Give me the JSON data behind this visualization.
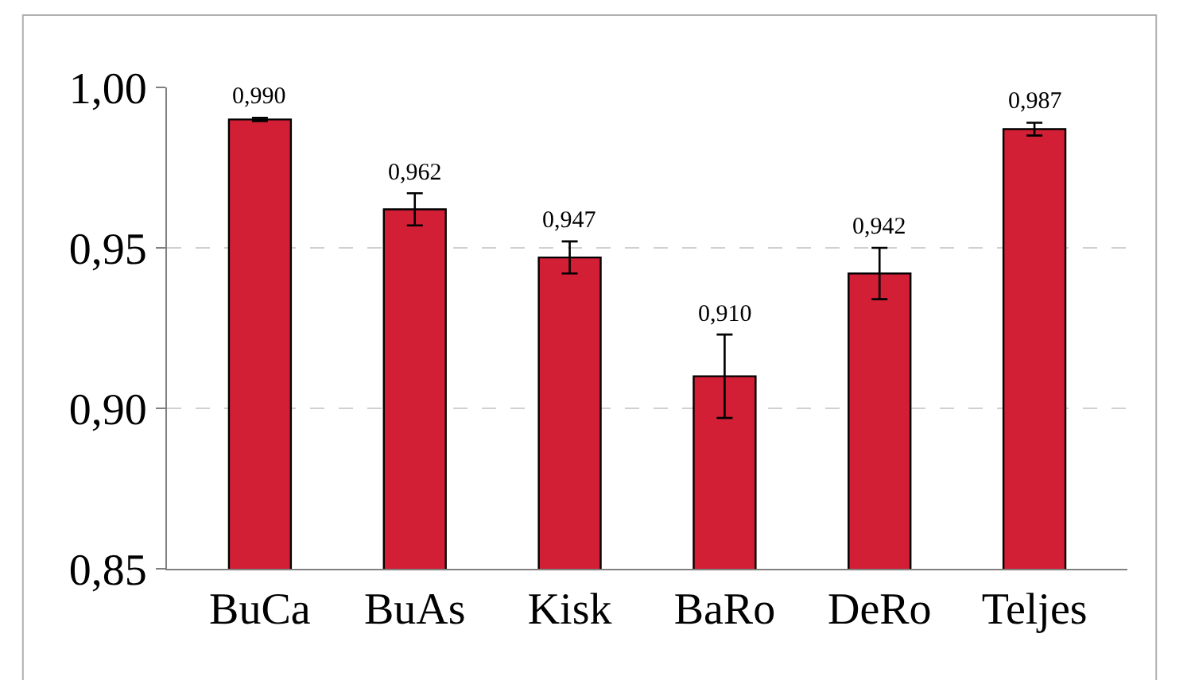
{
  "chart_data": {
    "type": "bar",
    "categories": [
      "BuCa",
      "BuAs",
      "Kisk",
      "BaRo",
      "DeRo",
      "Teljes"
    ],
    "values": [
      0.99,
      0.962,
      0.947,
      0.91,
      0.942,
      0.987
    ],
    "errors": [
      0.0005,
      0.005,
      0.005,
      0.013,
      0.008,
      0.002
    ],
    "value_labels": [
      "0,990",
      "0,962",
      "0,947",
      "0,910",
      "0,942",
      "0,987"
    ],
    "color": "#d21f36",
    "ylim": [
      0.85,
      1.0
    ],
    "yticks": [
      {
        "value": 0.85,
        "label": "0,85"
      },
      {
        "value": 0.9,
        "label": "0,90"
      },
      {
        "value": 0.95,
        "label": "0,95"
      },
      {
        "value": 1.0,
        "label": "1,00"
      }
    ],
    "grid": "y",
    "legend": false
  }
}
